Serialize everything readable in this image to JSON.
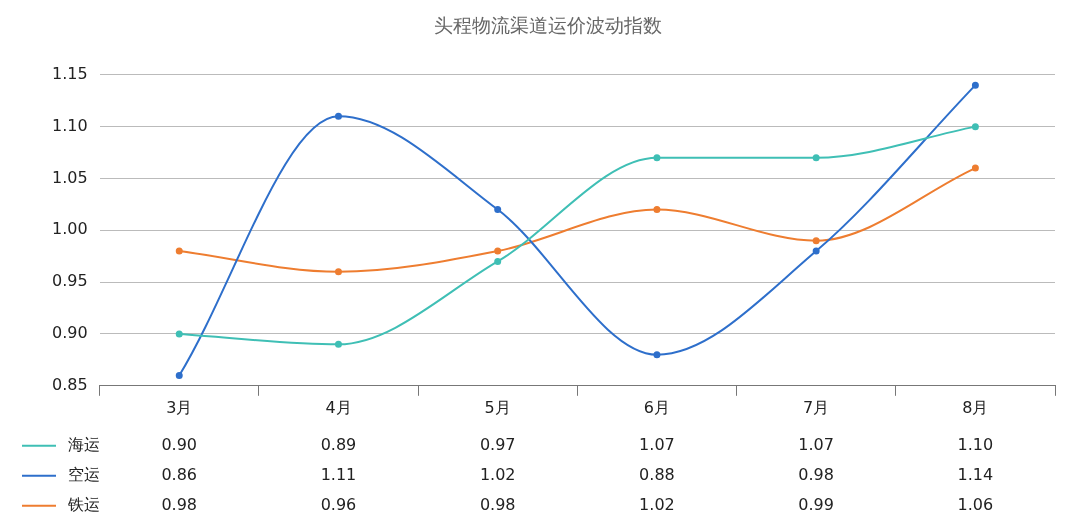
{
  "chart_data": {
    "type": "line",
    "title": "头程物流渠道运价波动指数",
    "categories": [
      "3月",
      "4月",
      "5月",
      "6月",
      "7月",
      "8月"
    ],
    "series": [
      {
        "name": "海运",
        "color": "#3fbfb5",
        "values": [
          0.9,
          0.89,
          0.97,
          1.07,
          1.07,
          1.1
        ],
        "value_labels": [
          "0.90",
          "0.89",
          "0.97",
          "1.07",
          "1.07",
          "1.10"
        ]
      },
      {
        "name": "空运",
        "color": "#2e6fcb",
        "values": [
          0.86,
          1.11,
          1.02,
          0.88,
          0.98,
          1.14
        ],
        "value_labels": [
          "0.86",
          "1.11",
          "1.02",
          "0.88",
          "0.98",
          "1.14"
        ]
      },
      {
        "name": "铁运",
        "color": "#ee7d30",
        "values": [
          0.98,
          0.96,
          0.98,
          1.02,
          0.99,
          1.06
        ],
        "value_labels": [
          "0.98",
          "0.96",
          "0.98",
          "1.02",
          "0.99",
          "1.06"
        ]
      }
    ],
    "ylim": [
      0.85,
      1.15
    ],
    "yticks": [
      0.85,
      {
        "value": 0.9,
        "label": "0.90"
      },
      0.95,
      {
        "value": 1,
        "label": "1.00"
      },
      1.05,
      {
        "value": 1.1,
        "label": "1.10"
      },
      1.15
    ],
    "grid": "y",
    "legend": "bottom left",
    "marker": "circle",
    "line_style": "solid"
  }
}
